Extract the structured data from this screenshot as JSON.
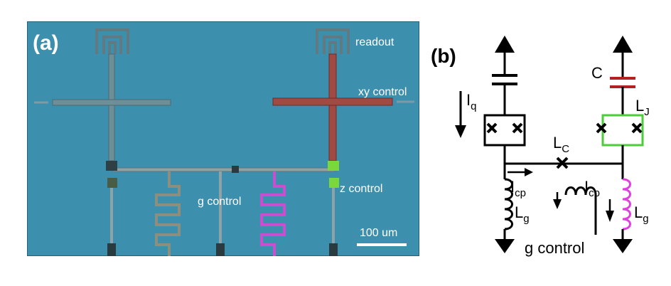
{
  "panel_a": {
    "label": "(a)",
    "labels": {
      "readout": "readout",
      "xy_control": "xy control",
      "g_control": "g control",
      "z_control": "z control",
      "scale_bar": "100 um"
    },
    "colors": {
      "substrate": "#3d8fae",
      "metal": "#7f9aa3",
      "xy_line": "#a14a44",
      "flux_line": "#c84fcf",
      "junction": "#7ad83a"
    }
  },
  "panel_b": {
    "label": "(b)",
    "labels": {
      "iq": "I",
      "iq_sub": "q",
      "c": "C",
      "lj": "L",
      "lj_sub": "J",
      "lc": "L",
      "lc_sub": "C",
      "icp_left": "I",
      "icp_left_sub": "cp",
      "icp_right": "I",
      "icp_right_sub": "cp",
      "lg_left": "L",
      "lg_left_sub": "g",
      "lg_right": "L",
      "lg_right_sub": "g",
      "g_control": "g control"
    },
    "colors": {
      "wire": "#000000",
      "capacitor_highlight": "#b22222",
      "squid_highlight": "#4ccc3a",
      "inductor_highlight": "#e040e0"
    }
  }
}
